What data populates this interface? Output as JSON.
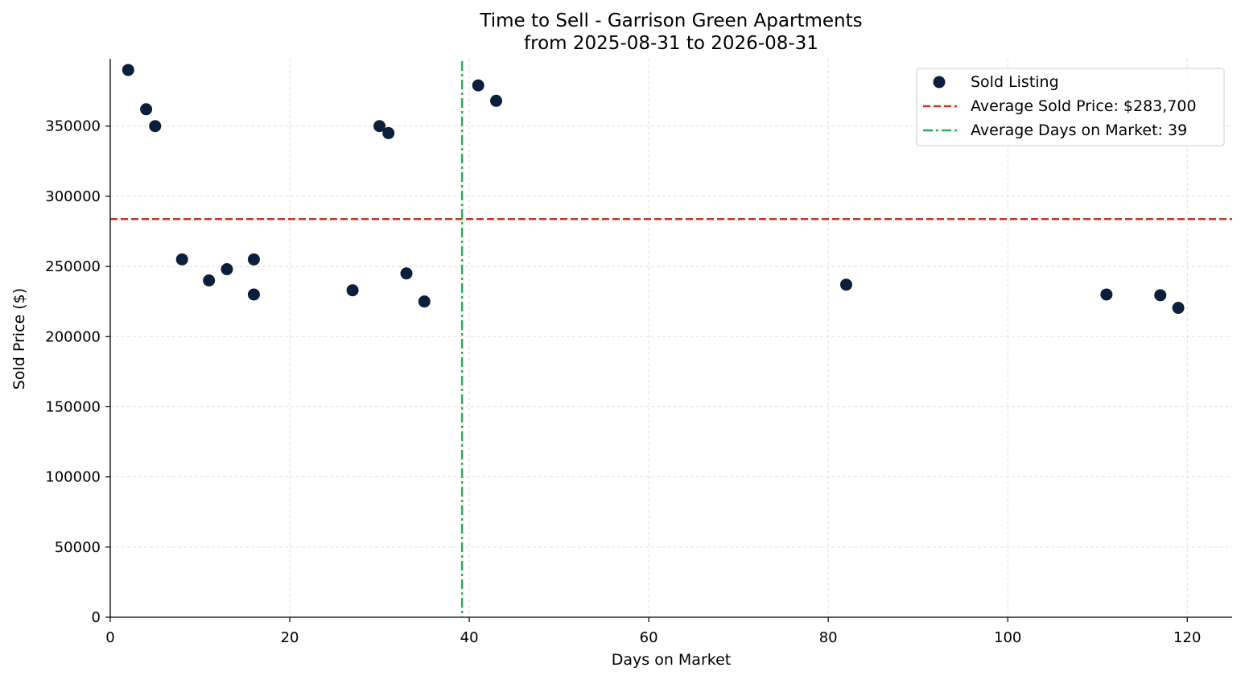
{
  "chart_data": {
    "type": "scatter",
    "title": "Time to Sell - Garrison Green Apartments",
    "subtitle": "from 2025-08-31 to 2026-08-31",
    "xlabel": "Days on Market",
    "ylabel": "Sold Price ($)",
    "xlim": [
      0,
      125
    ],
    "ylim": [
      0,
      398000
    ],
    "xticks": [
      0,
      20,
      40,
      60,
      80,
      100,
      120
    ],
    "yticks": [
      0,
      50000,
      100000,
      150000,
      200000,
      250000,
      300000,
      350000
    ],
    "grid": true,
    "legend_position": "top-right",
    "series": [
      {
        "name": "Sold Listing",
        "color": "#0b1f3a",
        "points": [
          {
            "x": 2,
            "y": 390000
          },
          {
            "x": 4,
            "y": 362000
          },
          {
            "x": 5,
            "y": 350000
          },
          {
            "x": 8,
            "y": 255000
          },
          {
            "x": 11,
            "y": 240000
          },
          {
            "x": 13,
            "y": 248000
          },
          {
            "x": 16,
            "y": 255000
          },
          {
            "x": 16,
            "y": 230000
          },
          {
            "x": 27,
            "y": 233000
          },
          {
            "x": 30,
            "y": 350000
          },
          {
            "x": 31,
            "y": 345000
          },
          {
            "x": 33,
            "y": 245000
          },
          {
            "x": 35,
            "y": 225000
          },
          {
            "x": 41,
            "y": 379000
          },
          {
            "x": 43,
            "y": 368000
          },
          {
            "x": 82,
            "y": 237000
          },
          {
            "x": 111,
            "y": 230000
          },
          {
            "x": 117,
            "y": 229500
          },
          {
            "x": 119,
            "y": 220500
          }
        ]
      }
    ],
    "reference_lines": [
      {
        "orientation": "horizontal",
        "value": 283700,
        "label": "Average Sold Price: $283,700",
        "color": "#c0392b",
        "style": "dashed"
      },
      {
        "orientation": "vertical",
        "value": 39.2,
        "label": "Average Days on Market: 39",
        "color": "#27ae60",
        "style": "dashdot"
      }
    ]
  }
}
